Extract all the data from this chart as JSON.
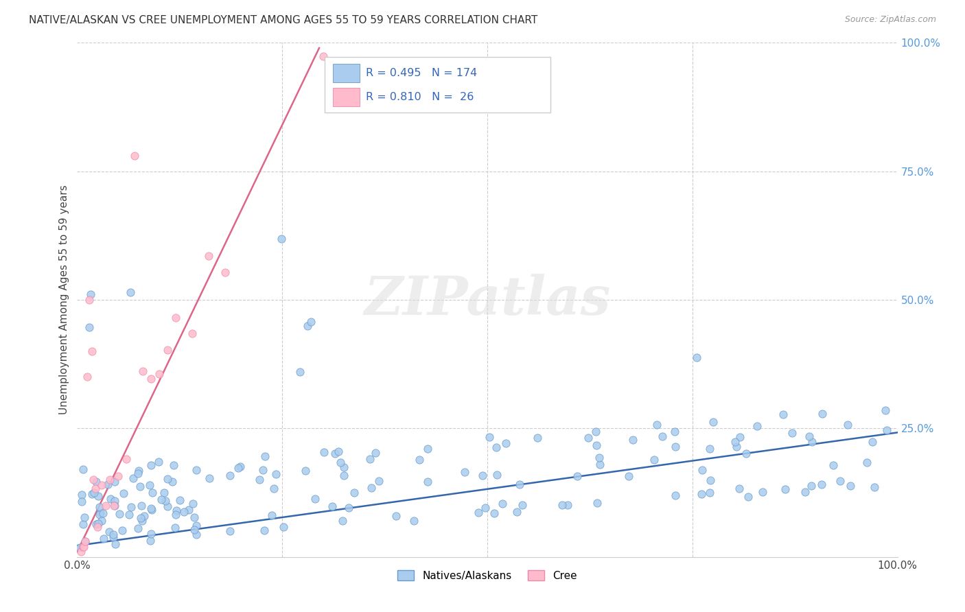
{
  "title": "NATIVE/ALASKAN VS CREE UNEMPLOYMENT AMONG AGES 55 TO 59 YEARS CORRELATION CHART",
  "source": "Source: ZipAtlas.com",
  "ylabel": "Unemployment Among Ages 55 to 59 years",
  "xlim": [
    0.0,
    1.0
  ],
  "ylim": [
    0.0,
    1.0
  ],
  "xtick_labels": [
    "0.0%",
    "100.0%"
  ],
  "ytick_labels_right": [
    "100.0%",
    "75.0%",
    "50.0%",
    "25.0%"
  ],
  "native_color": "#aaccee",
  "native_edge_color": "#6699cc",
  "cree_color": "#ffbbcc",
  "cree_edge_color": "#ee88aa",
  "trend_native_color": "#3366aa",
  "trend_cree_color": "#dd6688",
  "legend_label_native": "Natives/Alaskans",
  "legend_label_cree": "Cree",
  "R_native": "0.495",
  "N_native": "174",
  "R_cree": "0.810",
  "N_cree": "26",
  "watermark": "ZIPatlas",
  "native_seed": 42,
  "cree_seed": 123
}
